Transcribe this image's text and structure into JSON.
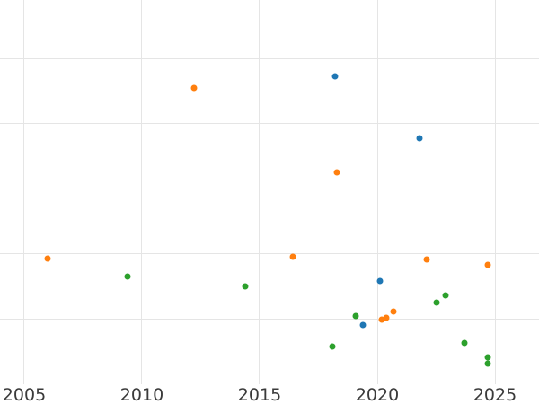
{
  "figure": {
    "background_color": "#ffffff",
    "grid_color": "#e5e5e5",
    "tick_label_color": "#3a3a3a"
  },
  "chart_data": {
    "type": "scatter",
    "title": "",
    "xlabel": "",
    "ylabel": "",
    "grid": true,
    "legend_position": "none",
    "x_ticks": [
      2005,
      2010,
      2015,
      2020,
      2025
    ],
    "xlim": [
      2003.97,
      2026.87
    ],
    "ylim": [
      0,
      5.9
    ],
    "y_gridline_values": [
      1,
      2,
      3,
      4,
      5
    ],
    "y_axis_labels_visible": false,
    "marker_diameter_px": 7,
    "series": [
      {
        "name": "series-blue",
        "color": "#1f77b4",
        "points": [
          {
            "x": 2018.2,
            "y": 4.73
          },
          {
            "x": 2021.8,
            "y": 3.78
          },
          {
            "x": 2020.1,
            "y": 1.58
          },
          {
            "x": 2019.4,
            "y": 0.91
          }
        ]
      },
      {
        "name": "series-orange",
        "color": "#ff7f0e",
        "points": [
          {
            "x": 2012.2,
            "y": 4.55
          },
          {
            "x": 2018.3,
            "y": 3.25
          },
          {
            "x": 2006.0,
            "y": 1.93
          },
          {
            "x": 2016.4,
            "y": 1.96
          },
          {
            "x": 2022.1,
            "y": 1.92
          },
          {
            "x": 2024.7,
            "y": 1.83
          },
          {
            "x": 2020.2,
            "y": 0.99
          },
          {
            "x": 2020.4,
            "y": 1.02
          },
          {
            "x": 2020.7,
            "y": 1.11
          }
        ]
      },
      {
        "name": "series-green",
        "color": "#2ca02c",
        "points": [
          {
            "x": 2009.4,
            "y": 1.66
          },
          {
            "x": 2014.4,
            "y": 1.5
          },
          {
            "x": 2019.1,
            "y": 1.05
          },
          {
            "x": 2018.1,
            "y": 0.58
          },
          {
            "x": 2022.5,
            "y": 1.25
          },
          {
            "x": 2022.9,
            "y": 1.37
          },
          {
            "x": 2023.7,
            "y": 0.64
          },
          {
            "x": 2024.7,
            "y": 0.41
          },
          {
            "x": 2024.7,
            "y": 0.32
          }
        ]
      }
    ]
  }
}
